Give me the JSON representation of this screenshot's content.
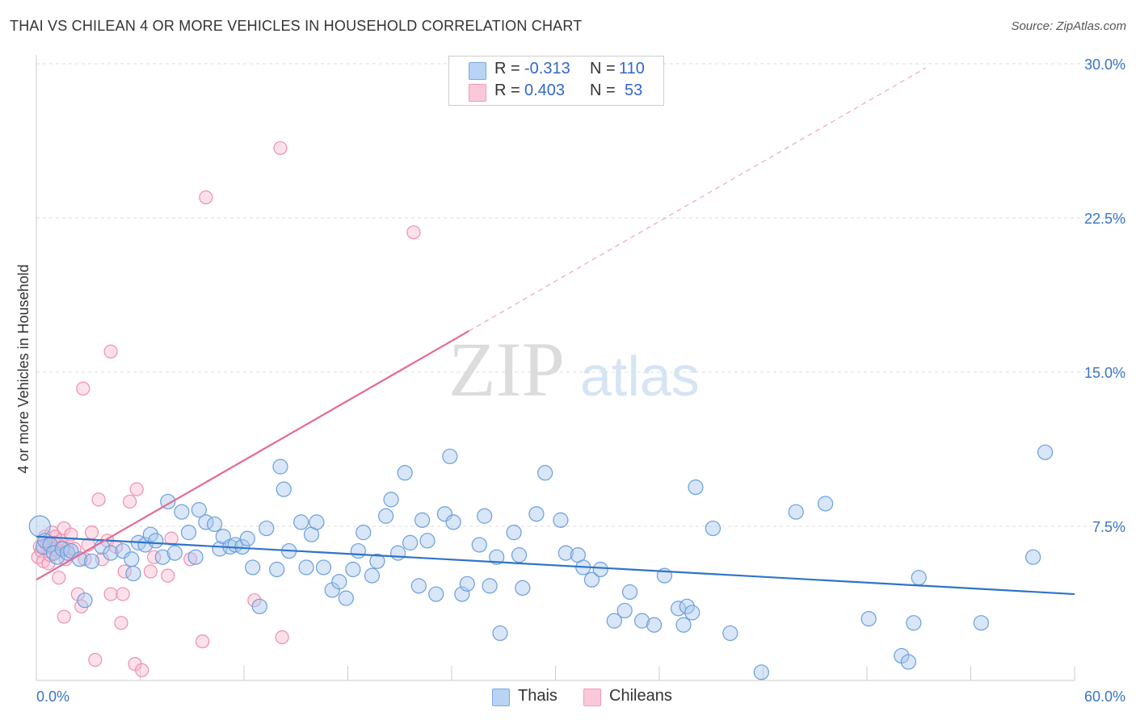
{
  "title": "THAI VS CHILEAN 4 OR MORE VEHICLES IN HOUSEHOLD CORRELATION CHART",
  "source": "Source: ZipAtlas.com",
  "watermark": {
    "zip": "ZIP",
    "atlas": "atlas"
  },
  "colors": {
    "thai_fill": "#a8c8f0",
    "thai_stroke": "#6a9fdc",
    "thai_line": "#2f74c8",
    "chilean_fill": "#f8bcd0",
    "chilean_stroke": "#ee8fb0",
    "chilean_line": "#e46a94",
    "axis_label": "#3a74c8",
    "grid": "#dddddd"
  },
  "legend": {
    "rows": [
      {
        "r_label": "R =",
        "r_value": "-0.313",
        "n_label": "N =",
        "n_value": "110"
      },
      {
        "r_label": "R =",
        "r_value": "0.403",
        "n_label": "N =",
        "n_value": "53"
      }
    ],
    "bottom": [
      "Thais",
      "Chileans"
    ]
  },
  "chart_data": {
    "type": "scatter",
    "title": "THAI VS CHILEAN 4 OR MORE VEHICLES IN HOUSEHOLD CORRELATION CHART",
    "xlabel": "",
    "ylabel": "4 or more Vehicles in Household",
    "xlim": [
      0,
      60
    ],
    "ylim": [
      0,
      30
    ],
    "x_tick_labels": [
      "0.0%",
      "60.0%"
    ],
    "y_ticks": [
      7.5,
      15.0,
      22.5,
      30.0
    ],
    "y_tick_labels": [
      "7.5%",
      "15.0%",
      "22.5%",
      "30.0%"
    ],
    "grid": true,
    "legend_position": "top-center",
    "series": [
      {
        "name": "Thais",
        "r": -0.313,
        "n": 110,
        "trend": {
          "x": [
            0,
            60
          ],
          "y": [
            7.0,
            4.2
          ]
        },
        "points": [
          [
            0.2,
            7.5
          ],
          [
            0.4,
            6.5
          ],
          [
            0.5,
            6.8
          ],
          [
            0.8,
            6.6
          ],
          [
            1.0,
            6.2
          ],
          [
            1.2,
            6.0
          ],
          [
            1.5,
            6.4
          ],
          [
            1.8,
            6.2
          ],
          [
            2.0,
            6.3
          ],
          [
            2.5,
            5.9
          ],
          [
            2.8,
            3.9
          ],
          [
            3.2,
            5.8
          ],
          [
            3.8,
            6.5
          ],
          [
            4.3,
            6.2
          ],
          [
            5.0,
            6.3
          ],
          [
            5.5,
            5.9
          ],
          [
            5.6,
            5.2
          ],
          [
            5.9,
            6.7
          ],
          [
            6.3,
            6.6
          ],
          [
            6.6,
            7.1
          ],
          [
            6.9,
            6.8
          ],
          [
            7.3,
            6.0
          ],
          [
            7.6,
            8.7
          ],
          [
            8.0,
            6.2
          ],
          [
            8.4,
            8.2
          ],
          [
            8.8,
            7.2
          ],
          [
            9.2,
            6.0
          ],
          [
            9.4,
            8.3
          ],
          [
            9.8,
            7.7
          ],
          [
            10.3,
            7.6
          ],
          [
            10.6,
            6.4
          ],
          [
            10.8,
            7.0
          ],
          [
            11.2,
            6.5
          ],
          [
            11.5,
            6.6
          ],
          [
            11.9,
            6.5
          ],
          [
            12.2,
            6.9
          ],
          [
            12.5,
            5.5
          ],
          [
            12.9,
            3.6
          ],
          [
            13.3,
            7.4
          ],
          [
            13.9,
            5.4
          ],
          [
            14.1,
            10.4
          ],
          [
            14.3,
            9.3
          ],
          [
            14.6,
            6.3
          ],
          [
            15.3,
            7.7
          ],
          [
            15.6,
            5.5
          ],
          [
            15.9,
            7.1
          ],
          [
            16.2,
            7.7
          ],
          [
            16.6,
            5.5
          ],
          [
            17.1,
            4.4
          ],
          [
            17.5,
            4.8
          ],
          [
            17.9,
            4.0
          ],
          [
            18.3,
            5.4
          ],
          [
            18.6,
            6.3
          ],
          [
            18.9,
            7.2
          ],
          [
            19.4,
            5.1
          ],
          [
            19.7,
            5.8
          ],
          [
            20.2,
            8.0
          ],
          [
            20.5,
            8.8
          ],
          [
            20.9,
            6.2
          ],
          [
            21.3,
            10.1
          ],
          [
            21.6,
            6.7
          ],
          [
            22.1,
            4.6
          ],
          [
            22.3,
            7.8
          ],
          [
            22.6,
            6.8
          ],
          [
            23.1,
            4.2
          ],
          [
            23.6,
            8.1
          ],
          [
            23.9,
            10.9
          ],
          [
            24.1,
            7.7
          ],
          [
            24.6,
            4.2
          ],
          [
            24.9,
            4.7
          ],
          [
            25.6,
            6.6
          ],
          [
            25.9,
            8.0
          ],
          [
            26.2,
            4.6
          ],
          [
            26.6,
            6.0
          ],
          [
            26.8,
            2.3
          ],
          [
            27.6,
            7.2
          ],
          [
            27.9,
            6.1
          ],
          [
            28.1,
            4.5
          ],
          [
            28.9,
            8.1
          ],
          [
            29.4,
            10.1
          ],
          [
            30.3,
            7.8
          ],
          [
            30.6,
            6.2
          ],
          [
            31.3,
            6.1
          ],
          [
            31.6,
            5.5
          ],
          [
            32.1,
            4.9
          ],
          [
            32.6,
            5.4
          ],
          [
            33.4,
            2.9
          ],
          [
            34.0,
            3.4
          ],
          [
            34.3,
            4.3
          ],
          [
            35.0,
            2.9
          ],
          [
            35.7,
            2.7
          ],
          [
            36.3,
            5.1
          ],
          [
            37.1,
            3.5
          ],
          [
            37.4,
            2.7
          ],
          [
            37.6,
            3.6
          ],
          [
            37.9,
            3.3
          ],
          [
            38.1,
            9.4
          ],
          [
            39.1,
            7.4
          ],
          [
            40.1,
            2.3
          ],
          [
            41.9,
            0.4
          ],
          [
            43.9,
            8.2
          ],
          [
            45.6,
            8.6
          ],
          [
            48.1,
            3.0
          ],
          [
            50.0,
            1.2
          ],
          [
            50.4,
            0.9
          ],
          [
            50.7,
            2.8
          ],
          [
            51.0,
            5.0
          ],
          [
            54.6,
            2.8
          ],
          [
            57.6,
            6.0
          ],
          [
            58.3,
            11.1
          ]
        ]
      },
      {
        "name": "Chileans",
        "r": 0.403,
        "n": 53,
        "trend": {
          "x": [
            0,
            25
          ],
          "y": [
            4.9,
            17.0
          ]
        },
        "trend_extrapolated": {
          "x": [
            25,
            51.4
          ],
          "y": [
            17.0,
            29.8
          ]
        },
        "points": [
          [
            0.1,
            6.0
          ],
          [
            0.2,
            6.5
          ],
          [
            0.3,
            6.3
          ],
          [
            0.4,
            5.8
          ],
          [
            0.5,
            7.0
          ],
          [
            0.6,
            6.6
          ],
          [
            0.7,
            5.7
          ],
          [
            0.8,
            6.1
          ],
          [
            0.9,
            7.2
          ],
          [
            1.0,
            6.7
          ],
          [
            1.0,
            6.4
          ],
          [
            1.1,
            7.0
          ],
          [
            1.2,
            6.3
          ],
          [
            1.3,
            5.0
          ],
          [
            1.4,
            6.8
          ],
          [
            1.5,
            6.5
          ],
          [
            1.6,
            3.1
          ],
          [
            1.6,
            7.4
          ],
          [
            1.7,
            5.9
          ],
          [
            1.8,
            6.4
          ],
          [
            2.0,
            7.1
          ],
          [
            2.2,
            6.4
          ],
          [
            2.4,
            4.2
          ],
          [
            2.6,
            3.6
          ],
          [
            2.8,
            5.9
          ],
          [
            3.0,
            6.6
          ],
          [
            3.2,
            7.2
          ],
          [
            3.4,
            1.0
          ],
          [
            3.6,
            8.8
          ],
          [
            3.8,
            5.9
          ],
          [
            4.1,
            6.8
          ],
          [
            4.3,
            4.2
          ],
          [
            4.6,
            6.5
          ],
          [
            4.9,
            2.8
          ],
          [
            5.0,
            4.2
          ],
          [
            5.1,
            5.3
          ],
          [
            5.4,
            8.7
          ],
          [
            5.7,
            0.8
          ],
          [
            5.8,
            9.3
          ],
          [
            6.1,
            0.5
          ],
          [
            6.6,
            5.3
          ],
          [
            6.8,
            6.0
          ],
          [
            7.6,
            5.1
          ],
          [
            7.8,
            6.9
          ],
          [
            8.9,
            5.9
          ],
          [
            9.6,
            1.9
          ],
          [
            9.8,
            23.5
          ],
          [
            12.6,
            3.9
          ],
          [
            14.1,
            25.9
          ],
          [
            14.2,
            2.1
          ],
          [
            21.8,
            21.8
          ],
          [
            4.3,
            16.0
          ],
          [
            2.7,
            14.2
          ]
        ]
      }
    ]
  }
}
